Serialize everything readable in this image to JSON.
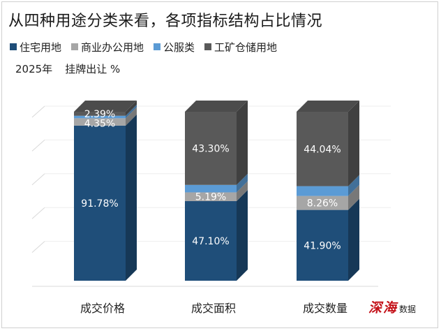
{
  "page": {
    "title": "从四种用途分类来看，各项指标结构占比情况",
    "unit_year": "2025年",
    "unit_desc": "挂牌出让 %"
  },
  "legend": [
    {
      "name": "住宅用地",
      "color": "#1f4e79"
    },
    {
      "name": "商业办公用地",
      "color": "#a6a6a6"
    },
    {
      "name": "公服类",
      "color": "#5b9bd5"
    },
    {
      "name": "工矿仓储用地",
      "color": "#595959"
    }
  ],
  "watermark": {
    "brand": "深海",
    "sub": "数据"
  },
  "chart_data": {
    "type": "bar",
    "stacked": true,
    "three_d": true,
    "categories": [
      "成交价格",
      "成交面积",
      "成交数量"
    ],
    "series": [
      {
        "name": "住宅用地",
        "color": "#1f4e79",
        "values": [
          91.78,
          47.1,
          41.9
        ],
        "labels": [
          "91.78%",
          "47.10%",
          "41.90%"
        ]
      },
      {
        "name": "商业办公用地",
        "color": "#a6a6a6",
        "values": [
          4.35,
          5.19,
          8.26
        ],
        "labels": [
          "4.35%",
          "5.19%",
          "8.26%"
        ]
      },
      {
        "name": "公服类",
        "color": "#5b9bd5",
        "values": [
          1.48,
          4.41,
          5.8
        ],
        "labels": [
          "",
          "",
          ""
        ]
      },
      {
        "name": "工矿仓储用地",
        "color": "#595959",
        "values": [
          2.39,
          43.3,
          44.04
        ],
        "labels": [
          "2.39%",
          "43.30%",
          "44.04%"
        ]
      }
    ],
    "ylim": [
      0,
      100
    ],
    "grid": true,
    "legend_position": "top-left"
  }
}
